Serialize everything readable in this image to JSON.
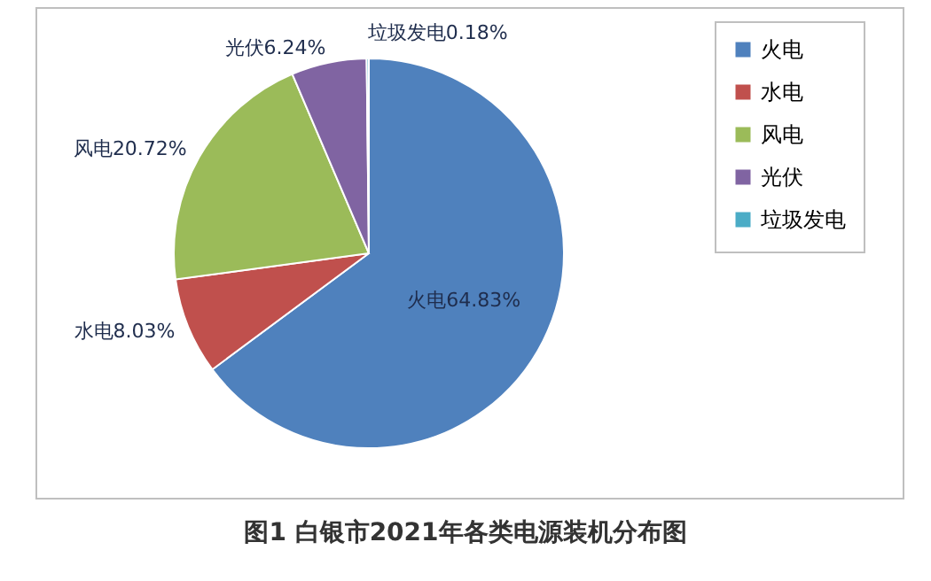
{
  "chart_data": {
    "type": "pie",
    "title": "图1  白银市2021年各类电源装机分布图",
    "categories": [
      "火电",
      "水电",
      "风电",
      "光伏",
      "垃圾发电"
    ],
    "values": [
      64.83,
      8.03,
      20.72,
      6.24,
      0.18
    ],
    "colors": [
      "#4f81bd",
      "#c0504d",
      "#9bbb59",
      "#8064a2",
      "#4bacc6"
    ],
    "value_labels": [
      "火电64.83%",
      "水电8.03%",
      "风电20.72%",
      "光伏6.24%",
      "垃圾发电0.18%"
    ],
    "legend": "right"
  }
}
